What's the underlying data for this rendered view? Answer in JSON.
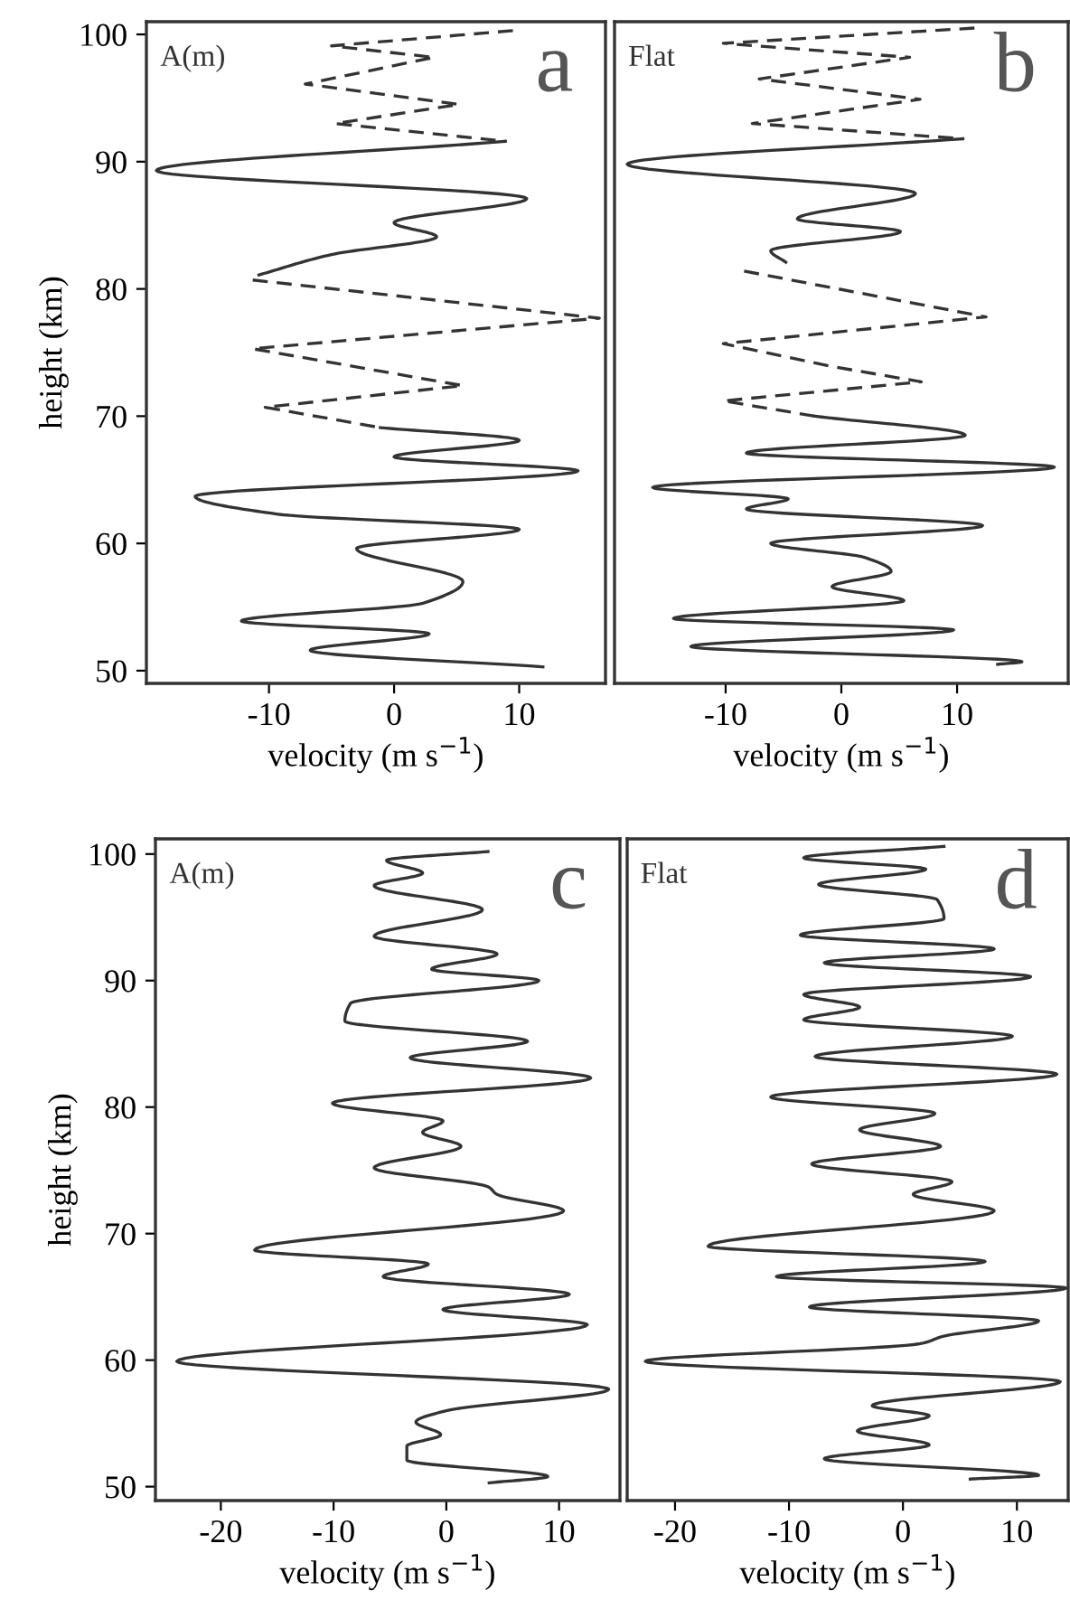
{
  "chart_data": [
    {
      "type": "line",
      "ylabel": "height (km)",
      "xlabel": "velocity (m s$^{−1}$)",
      "annotations": [
        "A(m)",
        "a"
      ],
      "xlim": [
        -19.8,
        16.9
      ],
      "ylim": [
        49,
        101
      ],
      "xticks": [
        -10,
        0,
        10
      ],
      "yticks": [
        50,
        60,
        70,
        80,
        90,
        100
      ],
      "series": [
        {
          "color": "#333333",
          "line_style": "dashed",
          "x": [
            9.5,
            -5.0,
            3.2,
            -7.1,
            5.2,
            -4.7,
            8.9
          ],
          "values": [
            100.3,
            99.1,
            98.2,
            96.1,
            94.5,
            93.0,
            91.6
          ]
        },
        {
          "color": "#333333",
          "line_style": "solid",
          "x": [
            8.9,
            -19.0,
            10.6,
            0,
            3.4,
            -5.0,
            -10.8
          ],
          "values": [
            91.6,
            89.3,
            87.1,
            85.2,
            84.1,
            82.7,
            81.1
          ]
        },
        {
          "color": "#333333",
          "line_style": "dashed",
          "x": [
            -11.3,
            16.4,
            -11.3,
            5.5,
            -10.3,
            -1.1
          ],
          "values": [
            80.7,
            77.7,
            75.3,
            72.4,
            70.7,
            69.1
          ]
        },
        {
          "color": "#333333",
          "line_style": "solid",
          "x": [
            -1.1,
            10.0,
            0,
            14.7,
            -15.9,
            -9.3,
            10.0,
            -3.0,
            5.5,
            2.3,
            -12.2,
            2.8,
            -6.7,
            11.9
          ],
          "values": [
            69.1,
            68.1,
            66.8,
            65.7,
            63.7,
            62.3,
            61.1,
            59.6,
            57.0,
            55.3,
            53.9,
            52.9,
            51.6,
            50.3
          ]
        }
      ]
    },
    {
      "type": "line",
      "xlabel": "velocity (m s$^{−1}$)",
      "annotations": [
        "Flat",
        "b"
      ],
      "xlim": [
        -19.6,
        19.6
      ],
      "ylim": [
        49,
        101
      ],
      "xticks": [
        -10,
        0,
        10
      ],
      "yticks": [
        50,
        60,
        70,
        80,
        90,
        100
      ],
      "tick_labels": "x",
      "series": [
        {
          "color": "#333333",
          "line_style": "dashed",
          "x": [
            11.5,
            -10.2,
            5.9,
            -7.1,
            6.8,
            -7.7,
            10.5
          ],
          "values": [
            100.5,
            99.3,
            98.2,
            96.5,
            94.9,
            93.0,
            91.8
          ]
        },
        {
          "color": "#333333",
          "line_style": "solid",
          "x": [
            10.5,
            -18.5,
            6.4,
            -3.8,
            5.1,
            -6.1,
            -4.8
          ],
          "values": [
            91.8,
            89.8,
            87.5,
            85.5,
            84.5,
            83.0,
            82.1
          ]
        },
        {
          "color": "#333333",
          "line_style": "dashed",
          "x": [
            -8.4,
            12.5,
            -10.2,
            -0.8,
            6.9,
            -10.2,
            -2.3
          ],
          "values": [
            81.4,
            77.8,
            75.7,
            73.9,
            72.7,
            71.2,
            70.0
          ]
        },
        {
          "color": "#333333",
          "line_style": "solid",
          "x": [
            -2.3,
            10.7,
            -8.2,
            18.4,
            -16.3,
            -4.6,
            -8.2,
            12.2,
            -6.1,
            2.0,
            4.3,
            -0.8,
            5.4,
            -14.5,
            9.7,
            -13.0,
            15.6,
            13.5
          ],
          "values": [
            70.0,
            68.5,
            67.1,
            66.0,
            64.4,
            63.5,
            62.7,
            61.4,
            60.0,
            58.9,
            57.8,
            56.6,
            55.5,
            54.1,
            53.2,
            51.9,
            50.7,
            50.5
          ]
        }
      ]
    },
    {
      "type": "line",
      "ylabel": "height (km)",
      "xlabel": "velocity (m s$^{−1}$)",
      "annotations": [
        "A(m)",
        "c"
      ],
      "xlim": [
        -25.8,
        15.4
      ],
      "ylim": [
        48.9,
        101.2
      ],
      "xticks": [
        -20,
        -10,
        0,
        10
      ],
      "yticks": [
        50,
        60,
        70,
        80,
        90,
        100
      ],
      "series": [
        {
          "color": "#333333",
          "line_style": "solid",
          "x": [
            3.7,
            -5.3,
            -2.1,
            -6.4,
            3.2,
            -6.4,
            4.5,
            -1.3,
            8.2,
            -8.5,
            -9.0,
            7.2,
            -3.2,
            12.8,
            -10.1,
            -0.3,
            -2.1,
            1.3,
            -6.4,
            3.7,
            4.5,
            10.4,
            -17.0,
            -1.6,
            -5.6,
            10.9,
            -0.3,
            12.5,
            -23.9,
            14.4,
            0,
            -2.7,
            -0.5,
            -3.5,
            -3.5,
            9.0,
            3.8
          ],
          "values": [
            100.2,
            99.5,
            98.5,
            97.5,
            95.6,
            93.5,
            92.1,
            90.9,
            90.0,
            88.2,
            86.8,
            85.2,
            83.9,
            82.3,
            80.3,
            78.9,
            78.0,
            76.9,
            75.2,
            73.7,
            73.1,
            71.8,
            68.7,
            67.6,
            66.6,
            65.2,
            64.0,
            62.8,
            59.9,
            57.7,
            56.0,
            55.1,
            54.1,
            53.2,
            52.1,
            50.8,
            50.3
          ]
        }
      ]
    },
    {
      "type": "line",
      "xlabel": "velocity (m s$^{−1}$)",
      "annotations": [
        "Flat",
        "d"
      ],
      "xlim": [
        -24.2,
        14.5
      ],
      "ylim": [
        48.9,
        101.2
      ],
      "xticks": [
        -20,
        -10,
        0,
        10
      ],
      "yticks": [
        50,
        60,
        70,
        80,
        90,
        100
      ],
      "tick_labels": "x",
      "series": [
        {
          "color": "#333333",
          "line_style": "solid",
          "x": [
            3.6,
            -8.7,
            2.0,
            -7.4,
            3.0,
            3.6,
            -9.0,
            8.0,
            -6.9,
            11.2,
            -8.7,
            -3.8,
            -8.7,
            9.6,
            -7.7,
            13.5,
            -11.6,
            2.8,
            -3.8,
            3.3,
            -8.0,
            4.3,
            0.9,
            8.0,
            -17.1,
            7.2,
            -11.1,
            14.3,
            -8.2,
            11.9,
            3.6,
            1.5,
            -22.6,
            13.8,
            -2.7,
            2.3,
            -4.0,
            2.3,
            -6.9,
            11.9,
            5.9
          ],
          "values": [
            100.6,
            99.7,
            98.8,
            97.6,
            96.4,
            94.9,
            93.6,
            92.5,
            91.4,
            90.3,
            88.9,
            87.9,
            86.9,
            85.6,
            84.0,
            82.6,
            80.8,
            79.5,
            78.2,
            76.9,
            75.5,
            74.1,
            73.1,
            71.8,
            69.0,
            67.8,
            66.6,
            65.7,
            64.2,
            63.1,
            61.9,
            61.3,
            59.9,
            58.3,
            56.4,
            55.6,
            54.4,
            53.3,
            52.2,
            50.9,
            50.6
          ]
        }
      ]
    }
  ]
}
